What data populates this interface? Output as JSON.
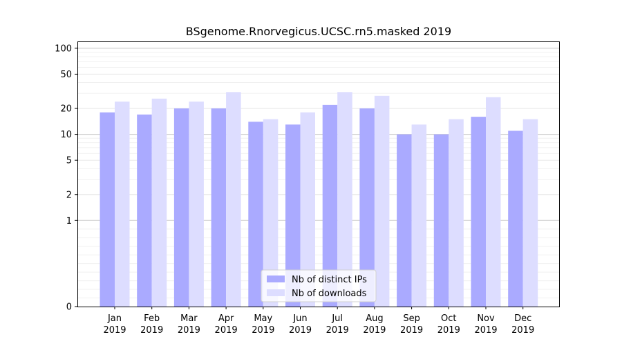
{
  "chart_data": {
    "type": "bar",
    "title": "BSgenome.Rnorvegicus.UCSC.rn5.masked 2019",
    "xlabel": "",
    "ylabel": "",
    "y_scale": "symlog",
    "ylim": [
      0,
      120
    ],
    "y_ticks": [
      "0",
      "1",
      "2",
      "5",
      "10",
      "20",
      "50",
      "100"
    ],
    "categories": [
      {
        "month": "Jan",
        "year": "2019"
      },
      {
        "month": "Feb",
        "year": "2019"
      },
      {
        "month": "Mar",
        "year": "2019"
      },
      {
        "month": "Apr",
        "year": "2019"
      },
      {
        "month": "May",
        "year": "2019"
      },
      {
        "month": "Jun",
        "year": "2019"
      },
      {
        "month": "Jul",
        "year": "2019"
      },
      {
        "month": "Aug",
        "year": "2019"
      },
      {
        "month": "Sep",
        "year": "2019"
      },
      {
        "month": "Oct",
        "year": "2019"
      },
      {
        "month": "Nov",
        "year": "2019"
      },
      {
        "month": "Dec",
        "year": "2019"
      }
    ],
    "series": [
      {
        "name": "Nb of distinct IPs",
        "color": "#aaaaff",
        "values": [
          18,
          17,
          20,
          20,
          14,
          13,
          22,
          20,
          10,
          10,
          16,
          11
        ]
      },
      {
        "name": "Nb of downloads",
        "color": "#ddddff",
        "values": [
          24,
          26,
          24,
          31,
          15,
          18,
          31,
          28,
          13,
          15,
          27,
          15
        ]
      }
    ],
    "grid": true,
    "legend_position": "lower-center"
  }
}
